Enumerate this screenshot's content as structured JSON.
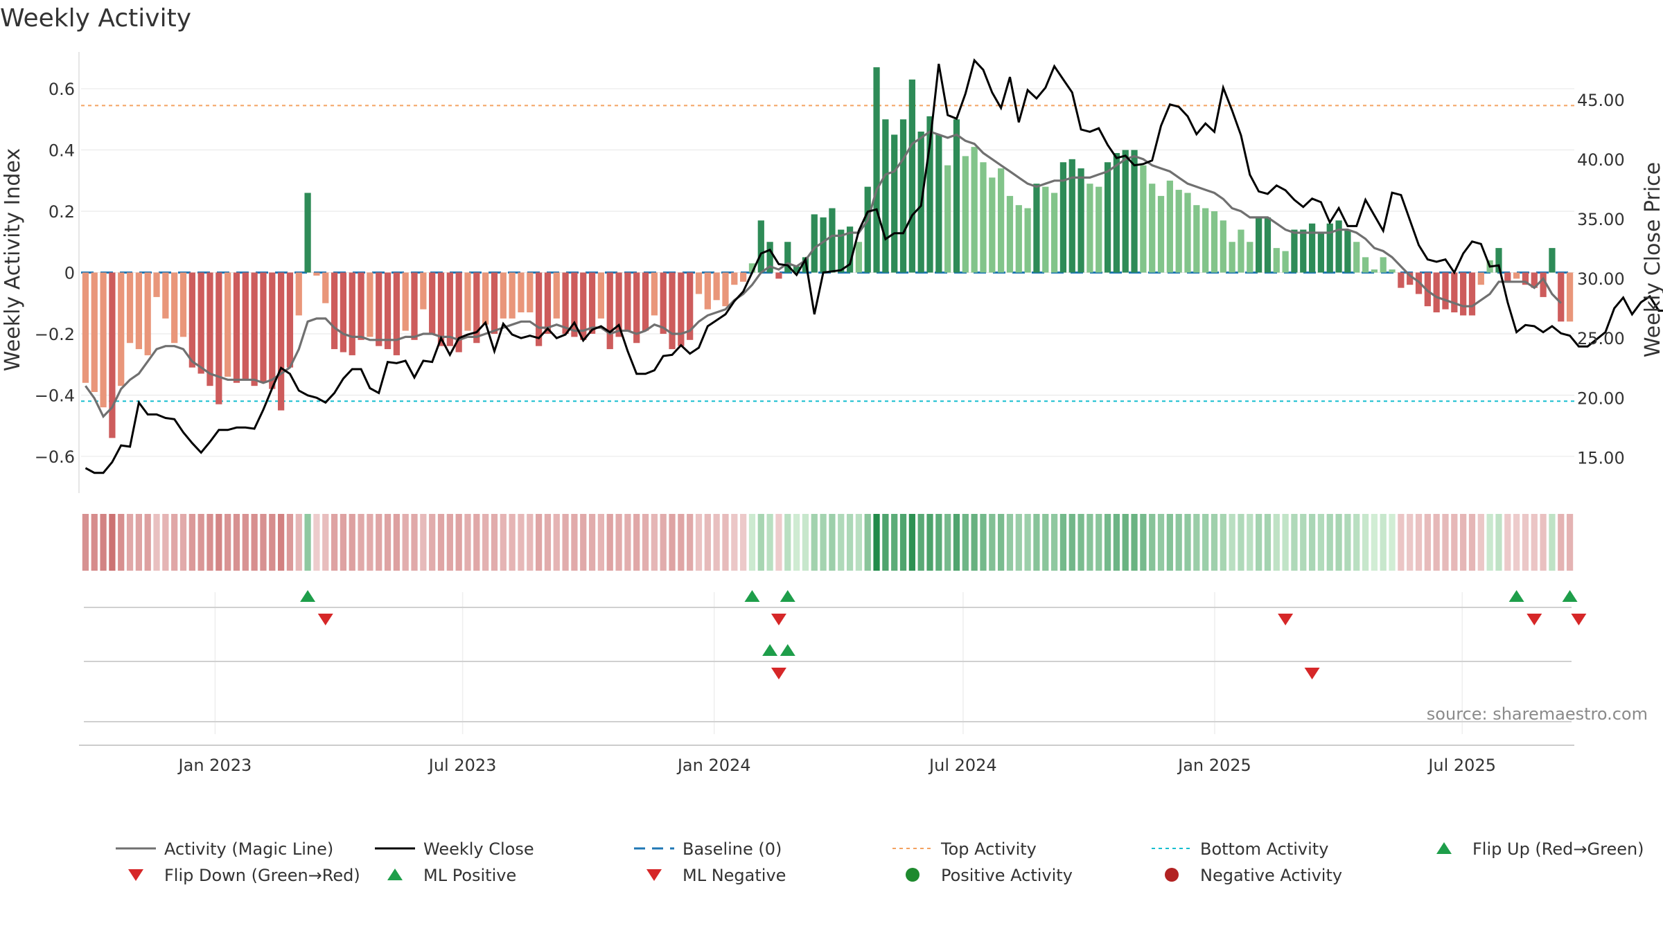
{
  "title": "Weekly Activity",
  "source": "source: sharemaestro.com",
  "colors": {
    "pos_bright": "#2e8b57",
    "pos_light": "#82c48a",
    "neg_bright": "#cd5c5c",
    "neg_light": "#e9967a",
    "magic_line": "#707070",
    "close": "#000000",
    "baseline": "#1f77b4",
    "top": "#f4a261",
    "bottom": "#17becf",
    "flip_up": "#1e9e4a",
    "flip_down": "#d62728"
  },
  "chart_data": {
    "type": "bar",
    "ylabel_left": "Weekly Activity Index",
    "ylabel_right": "Weekly Close Price",
    "ylim_left": [
      -0.72,
      0.72
    ],
    "ylim_right": [
      12.0,
      49.0
    ],
    "yticks_left": [
      {
        "v": 0.6,
        "label": "0.6"
      },
      {
        "v": 0.4,
        "label": "0.4"
      },
      {
        "v": 0.2,
        "label": "0.2"
      },
      {
        "v": 0,
        "label": "0"
      },
      {
        "v": -0.2,
        "label": "−0.2"
      },
      {
        "v": -0.4,
        "label": "−0.4"
      },
      {
        "v": -0.6,
        "label": "−0.6"
      }
    ],
    "yticks_right": [
      {
        "v": 45,
        "label": "45.00"
      },
      {
        "v": 40,
        "label": "40.00"
      },
      {
        "v": 35,
        "label": "35.00"
      },
      {
        "v": 30,
        "label": "30.00"
      },
      {
        "v": 25,
        "label": "25.00"
      },
      {
        "v": 20,
        "label": "20.00"
      },
      {
        "v": 15,
        "label": "15.00"
      }
    ],
    "x_start": "2022-09-25",
    "x_end": "2025-09-21",
    "xticks": [
      {
        "date": "2023-01-01",
        "label": "Jan 2023"
      },
      {
        "date": "2023-07-01",
        "label": "Jul 2023"
      },
      {
        "date": "2024-01-01",
        "label": "Jan 2024"
      },
      {
        "date": "2024-07-01",
        "label": "Jul 2024"
      },
      {
        "date": "2025-01-01",
        "label": "Jan 2025"
      },
      {
        "date": "2025-07-01",
        "label": "Jul 2025"
      }
    ],
    "top_activity": 0.545,
    "bottom_activity": -0.42,
    "baseline": 0,
    "activity": [
      -0.36,
      -0.39,
      -0.44,
      -0.54,
      -0.37,
      -0.23,
      -0.25,
      -0.27,
      -0.08,
      -0.15,
      -0.23,
      -0.21,
      -0.31,
      -0.33,
      -0.37,
      -0.43,
      -0.34,
      -0.36,
      -0.35,
      -0.37,
      -0.36,
      -0.38,
      -0.45,
      -0.31,
      -0.14,
      0.26,
      -0.01,
      -0.1,
      -0.25,
      -0.26,
      -0.27,
      -0.22,
      -0.21,
      -0.24,
      -0.25,
      -0.27,
      -0.19,
      -0.22,
      -0.12,
      -0.2,
      -0.24,
      -0.24,
      -0.26,
      -0.19,
      -0.23,
      -0.17,
      -0.2,
      -0.15,
      -0.15,
      -0.13,
      -0.13,
      -0.24,
      -0.2,
      -0.15,
      -0.2,
      -0.21,
      -0.22,
      -0.2,
      -0.15,
      -0.25,
      -0.21,
      -0.19,
      -0.23,
      -0.19,
      -0.14,
      -0.2,
      -0.25,
      -0.24,
      -0.22,
      -0.07,
      -0.12,
      -0.09,
      -0.11,
      -0.04,
      -0.03,
      0.03,
      0.17,
      0.1,
      -0.02,
      0.1,
      0.02,
      0.05,
      0.19,
      0.18,
      0.21,
      0.14,
      0.15,
      0.1,
      0.28,
      0.67,
      0.5,
      0.45,
      0.5,
      0.63,
      0.46,
      0.51,
      0.45,
      0.35,
      0.5,
      0.38,
      0.41,
      0.36,
      0.31,
      0.34,
      0.25,
      0.22,
      0.21,
      0.29,
      0.28,
      0.26,
      0.36,
      0.37,
      0.34,
      0.29,
      0.28,
      0.36,
      0.39,
      0.4,
      0.4,
      0.35,
      0.29,
      0.25,
      0.3,
      0.27,
      0.26,
      0.22,
      0.21,
      0.2,
      0.17,
      0.1,
      0.14,
      0.1,
      0.18,
      0.18,
      0.08,
      0.07,
      0.14,
      0.14,
      0.16,
      0.13,
      0.16,
      0.17,
      0.14,
      0.1,
      0.05,
      0.01,
      0.05,
      0.01,
      -0.05,
      -0.04,
      -0.07,
      -0.11,
      -0.13,
      -0.12,
      -0.13,
      -0.14,
      -0.14,
      -0.04,
      0.04,
      0.08,
      -0.03,
      -0.02,
      -0.04,
      -0.05,
      -0.08,
      0.08,
      -0.16,
      -0.16
    ],
    "magic_line": [
      -0.37,
      -0.41,
      -0.47,
      -0.44,
      -0.38,
      -0.35,
      -0.33,
      -0.29,
      -0.25,
      -0.24,
      -0.24,
      -0.25,
      -0.29,
      -0.31,
      -0.33,
      -0.34,
      -0.35,
      -0.35,
      -0.35,
      -0.35,
      -0.36,
      -0.35,
      -0.33,
      -0.31,
      -0.25,
      -0.16,
      -0.15,
      -0.15,
      -0.18,
      -0.2,
      -0.21,
      -0.21,
      -0.22,
      -0.22,
      -0.22,
      -0.22,
      -0.21,
      -0.21,
      -0.2,
      -0.2,
      -0.21,
      -0.21,
      -0.22,
      -0.21,
      -0.21,
      -0.2,
      -0.19,
      -0.18,
      -0.17,
      -0.16,
      -0.16,
      -0.18,
      -0.18,
      -0.17,
      -0.18,
      -0.19,
      -0.19,
      -0.18,
      -0.18,
      -0.2,
      -0.19,
      -0.19,
      -0.2,
      -0.19,
      -0.17,
      -0.18,
      -0.2,
      -0.2,
      -0.19,
      -0.16,
      -0.14,
      -0.13,
      -0.12,
      -0.09,
      -0.07,
      -0.04,
      0.0,
      0.02,
      0.01,
      0.03,
      0.02,
      0.04,
      0.08,
      0.1,
      0.12,
      0.12,
      0.13,
      0.13,
      0.17,
      0.27,
      0.32,
      0.33,
      0.37,
      0.42,
      0.44,
      0.46,
      0.45,
      0.44,
      0.45,
      0.43,
      0.42,
      0.39,
      0.37,
      0.35,
      0.33,
      0.31,
      0.29,
      0.28,
      0.29,
      0.3,
      0.3,
      0.31,
      0.31,
      0.31,
      0.32,
      0.33,
      0.35,
      0.37,
      0.38,
      0.37,
      0.35,
      0.34,
      0.33,
      0.31,
      0.29,
      0.28,
      0.27,
      0.26,
      0.24,
      0.21,
      0.2,
      0.18,
      0.18,
      0.18,
      0.16,
      0.14,
      0.13,
      0.13,
      0.13,
      0.13,
      0.13,
      0.14,
      0.14,
      0.13,
      0.11,
      0.08,
      0.07,
      0.05,
      0.02,
      -0.01,
      -0.03,
      -0.06,
      -0.08,
      -0.09,
      -0.1,
      -0.11,
      -0.11,
      -0.09,
      -0.07,
      -0.03,
      -0.03,
      -0.03,
      -0.03,
      -0.05,
      -0.02,
      -0.07,
      -0.1
    ],
    "weekly_close": [
      14.1,
      13.7,
      13.7,
      14.6,
      16.0,
      15.9,
      19.6,
      18.6,
      18.6,
      18.3,
      18.2,
      17.1,
      16.2,
      15.4,
      16.3,
      17.3,
      17.3,
      17.5,
      17.5,
      17.4,
      19.0,
      20.8,
      22.5,
      22.0,
      20.6,
      20.2,
      20.0,
      19.6,
      20.4,
      21.6,
      22.4,
      22.4,
      20.8,
      20.4,
      23.0,
      22.9,
      23.1,
      21.7,
      23.1,
      23.0,
      25.0,
      23.6,
      25.0,
      25.3,
      25.5,
      26.3,
      23.9,
      26.2,
      25.3,
      25.0,
      25.2,
      25.0,
      25.8,
      25.0,
      25.3,
      26.3,
      24.8,
      25.7,
      26.0,
      25.5,
      26.1,
      23.9,
      22.0,
      22.0,
      22.3,
      23.5,
      23.6,
      24.4,
      23.7,
      24.2,
      26.0,
      26.5,
      27.0,
      28.1,
      28.9,
      30.5,
      32.1,
      32.4,
      31.2,
      31.1,
      30.3,
      31.6,
      27.0,
      30.5,
      30.6,
      30.7,
      31.2,
      34.0,
      35.6,
      35.8,
      33.3,
      33.8,
      33.8,
      35.3,
      36.1,
      41.3,
      48.0,
      43.7,
      43.4,
      45.5,
      48.3,
      47.5,
      45.6,
      44.3,
      46.9,
      43.1,
      45.8,
      45.1,
      46.0,
      47.8,
      46.7,
      45.6,
      42.5,
      42.3,
      42.6,
      41.2,
      40.1,
      40.3,
      39.5,
      39.6,
      39.9,
      42.8,
      44.6,
      44.4,
      43.6,
      42.1,
      43.0,
      42.3,
      46.0,
      44.1,
      42.0,
      38.7,
      37.3,
      37.1,
      37.8,
      37.4,
      36.6,
      36.0,
      36.7,
      36.4,
      34.7,
      35.9,
      34.4,
      34.4,
      36.6,
      35.3,
      34.0,
      37.2,
      37.0,
      34.9,
      32.8,
      31.6,
      31.4,
      31.6,
      30.5,
      32.1,
      33.1,
      32.9,
      31.0,
      31.1,
      28.0,
      25.5,
      26.1,
      26.0,
      25.5,
      26.0,
      25.4,
      25.2,
      24.3,
      24.3,
      24.9,
      25.5,
      27.5,
      28.4,
      27.0,
      28.0,
      28.5,
      27.3,
      27.3,
      27.2,
      27.3,
      26.5
    ],
    "flip_up": [
      25,
      75,
      79,
      161,
      167
    ],
    "flip_down": [
      27,
      78,
      135,
      163,
      168
    ],
    "ml_positive": [
      77,
      79
    ],
    "ml_negative": [
      78,
      138
    ]
  },
  "legend": [
    {
      "label": "Activity (Magic Line)",
      "icon": "line-solid",
      "color": "#707070"
    },
    {
      "label": "Weekly Close",
      "icon": "line-solid",
      "color": "#000000"
    },
    {
      "label": "Baseline (0)",
      "icon": "line-dash",
      "color": "#1f77b4"
    },
    {
      "label": "Top Activity",
      "icon": "line-dot",
      "color": "#f4a261"
    },
    {
      "label": "Bottom Activity",
      "icon": "line-dot",
      "color": "#17becf"
    },
    {
      "label": "Flip Up (Red→Green)",
      "icon": "triangle-up",
      "color": "#1e9e4a"
    },
    {
      "label": "Flip Down (Green→Red)",
      "icon": "triangle-down",
      "color": "#d62728"
    },
    {
      "label": "ML Positive",
      "icon": "triangle-up",
      "color": "#1e9e4a"
    },
    {
      "label": "ML Negative",
      "icon": "triangle-down",
      "color": "#d62728"
    },
    {
      "label": "Positive Activity",
      "icon": "circle",
      "color": "#1e8a2e"
    },
    {
      "label": "Negative Activity",
      "icon": "circle",
      "color": "#b22222"
    }
  ]
}
